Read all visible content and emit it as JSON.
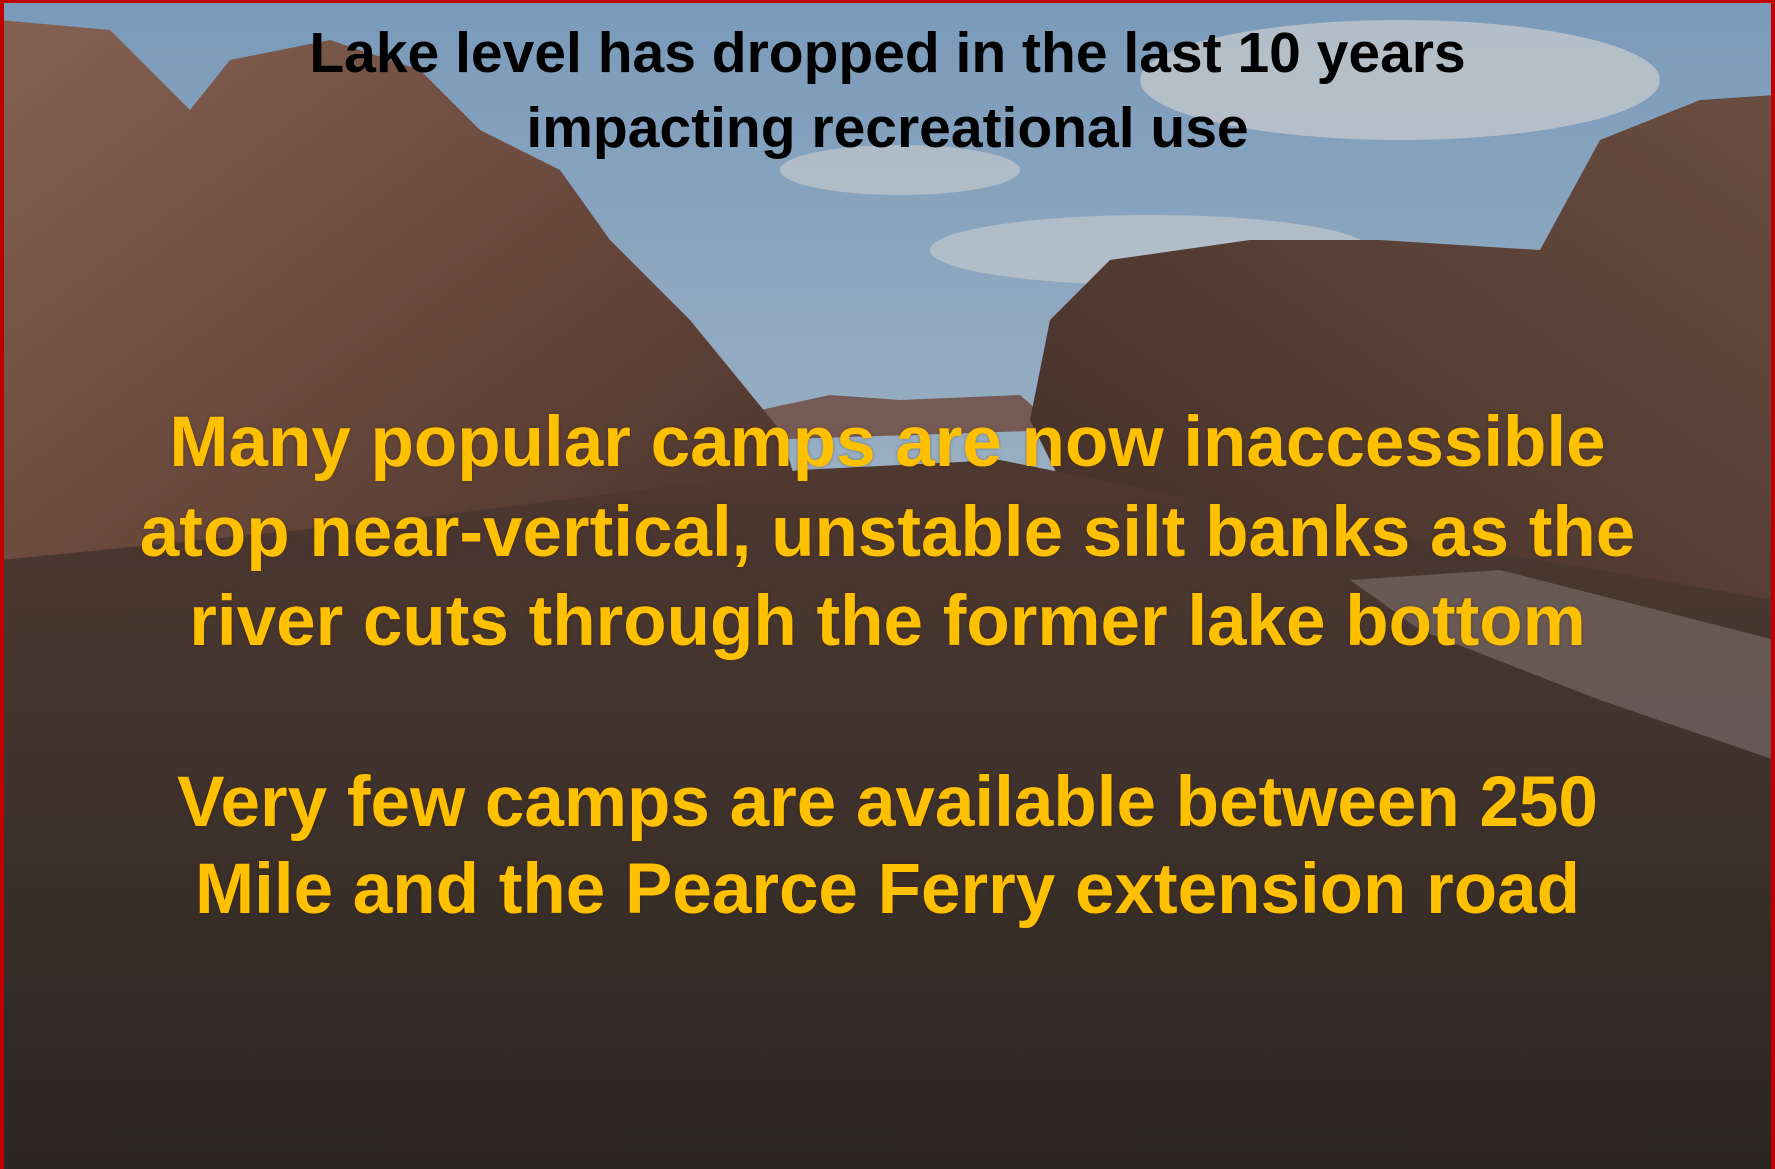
{
  "slide": {
    "title": [
      "Lake level has dropped in the last 10 years",
      "impacting recreational use"
    ],
    "paragraphs": [
      [
        "Many popular camps are now inaccessible",
        "atop near-vertical, unstable silt banks as the",
        "river cuts through the former lake bottom"
      ],
      [
        "Very few camps are available between 250",
        "Mile and the Pearce Ferry extension road"
      ]
    ]
  }
}
